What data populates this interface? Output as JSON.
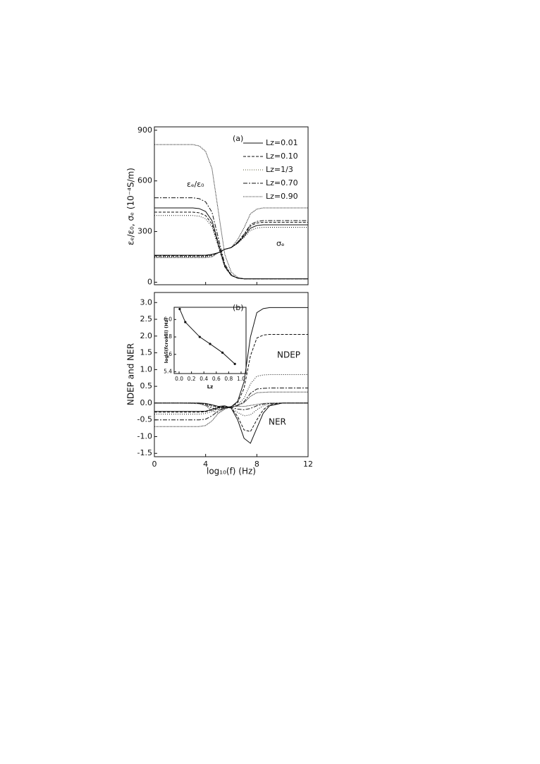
{
  "chart_data": [
    {
      "type": "line",
      "label": "(a)",
      "y_label": "εₑ/ε₀, σₑ (10⁻⁴S/m)",
      "annotations": [
        "εₑ/ε₀",
        "σₑ"
      ],
      "x": [
        0,
        1,
        2,
        3,
        3.5,
        4,
        4.5,
        5,
        5.5,
        6,
        6.5,
        7,
        7.5,
        8,
        8.5,
        9,
        10,
        11,
        12
      ],
      "xlim": [
        0,
        12
      ],
      "xticks": [
        0,
        4,
        8,
        12
      ],
      "ylim": [
        -15,
        920
      ],
      "yticks": [
        0,
        300,
        600,
        900
      ],
      "legend": "upper right",
      "series": [
        {
          "name": "Lz=0.01",
          "color": "#111111",
          "dash": "none",
          "values": [
            440,
            440,
            440,
            440,
            436,
            419,
            364,
            230,
            96,
            41,
            24,
            20,
            20,
            20,
            20,
            20,
            20,
            20,
            20
          ],
          "sigma_values": [
            160,
            160,
            160,
            160,
            160,
            160,
            165,
            175,
            195,
            205,
            232,
            272,
            320,
            336,
            340,
            340,
            340,
            340,
            340
          ]
        },
        {
          "name": "Lz=0.10",
          "color": "#111111",
          "dash": "4,2",
          "values": [
            415,
            415,
            415,
            415,
            411,
            395,
            344,
            218,
            91,
            40,
            24,
            20,
            20,
            20,
            20,
            20,
            20,
            20,
            20
          ],
          "sigma_values": [
            155,
            155,
            155,
            155,
            155,
            155,
            160,
            175,
            195,
            205,
            235,
            280,
            333,
            351,
            355,
            355,
            355,
            355,
            355
          ]
        },
        {
          "name": "Lz=1/3",
          "color": "#555533",
          "dash": "1,2",
          "values": [
            395,
            395,
            395,
            395,
            391,
            376,
            328,
            208,
            88,
            39,
            24,
            20,
            20,
            20,
            20,
            20,
            20,
            20,
            20
          ],
          "sigma_values": [
            150,
            150,
            150,
            150,
            150,
            150,
            155,
            175,
            195,
            205,
            229,
            265,
            307,
            321,
            325,
            325,
            325,
            325,
            325
          ]
        },
        {
          "name": "Lz=0.70",
          "color": "#111111",
          "dash": "6,2,2,2",
          "values": [
            500,
            500,
            500,
            500,
            495,
            476,
            414,
            260,
            106,
            44,
            25,
            20,
            20,
            20,
            20,
            20,
            20,
            20,
            20
          ],
          "sigma_values": [
            158,
            158,
            158,
            158,
            158,
            158,
            163,
            175,
            195,
            205,
            237,
            285,
            341,
            360,
            365,
            365,
            365,
            365,
            365
          ]
        },
        {
          "name": "Lz=0.90",
          "color": "#333333",
          "dash": "1,1",
          "values": [
            815,
            815,
            815,
            815,
            807,
            775,
            672,
            418,
            163,
            60,
            28,
            20,
            20,
            20,
            20,
            20,
            20,
            20,
            20
          ],
          "sigma_values": [
            145,
            145,
            145,
            145,
            145,
            145,
            150,
            175,
            195,
            205,
            252,
            322,
            405,
            433,
            440,
            440,
            440,
            440,
            440
          ]
        }
      ]
    },
    {
      "type": "line",
      "label": "(b)",
      "y_label": "NDEP and NER",
      "x_label": "log₁₀(f) (Hz)",
      "annotations": [
        "NDEP",
        "NER"
      ],
      "x": [
        0,
        1,
        2,
        3,
        3.5,
        4,
        4.5,
        5,
        5.5,
        6,
        6.5,
        7,
        7.5,
        8,
        8.5,
        9,
        10,
        11,
        12
      ],
      "xlim": [
        0,
        12
      ],
      "xticks": [
        0,
        4,
        8,
        12
      ],
      "ylim": [
        -1.6,
        3.3
      ],
      "yticks": [
        {
          "value": 3,
          "label": "3.0"
        },
        2.5,
        {
          "value": 2,
          "label": "2.0"
        },
        1.5,
        {
          "value": 1,
          "label": "1.0"
        },
        0.5,
        {
          "value": 0,
          "label": "0.0"
        },
        -0.5,
        {
          "value": -1,
          "label": "-1.0"
        },
        -1.5
      ],
      "series": [
        {
          "color": "#111111",
          "dash": "none",
          "values": [
            -0.25,
            -0.25,
            -0.25,
            -0.25,
            -0.25,
            -0.24,
            -0.19,
            -0.13,
            -0.12,
            -0.11,
            0.05,
            0.64,
            1.97,
            2.7,
            2.82,
            2.85,
            2.85,
            2.85,
            2.85
          ],
          "ner_values": [
            0,
            0,
            0,
            0,
            0,
            -0.01,
            -0.05,
            -0.1,
            -0.08,
            -0.15,
            -0.5,
            -1.05,
            -1.2,
            -0.75,
            -0.3,
            -0.08,
            0,
            0,
            0
          ]
        },
        {
          "color": "#111111",
          "dash": "4,2",
          "values": [
            -0.27,
            -0.27,
            -0.27,
            -0.27,
            -0.27,
            -0.26,
            -0.2,
            -0.14,
            -0.13,
            -0.11,
            0.01,
            0.44,
            1.41,
            1.94,
            2.03,
            2.05,
            2.05,
            2.05,
            2.05
          ],
          "ner_values": [
            0,
            0,
            0,
            0,
            0,
            -0.02,
            -0.07,
            -0.12,
            -0.1,
            -0.14,
            -0.4,
            -0.8,
            -0.85,
            -0.5,
            -0.2,
            -0.05,
            0,
            0,
            0
          ]
        },
        {
          "color": "#555533",
          "dash": "1,2",
          "values": [
            -0.33,
            -0.33,
            -0.33,
            -0.33,
            -0.33,
            -0.31,
            -0.25,
            -0.16,
            -0.13,
            -0.11,
            -0.05,
            0.14,
            0.57,
            0.8,
            0.84,
            0.85,
            0.85,
            0.85,
            0.85
          ],
          "ner_values": [
            0,
            0,
            0,
            0,
            -0.01,
            -0.03,
            -0.1,
            -0.15,
            -0.12,
            -0.15,
            -0.28,
            -0.38,
            -0.35,
            -0.2,
            -0.08,
            -0.02,
            0,
            0,
            0
          ]
        },
        {
          "color": "#111111",
          "dash": "6,2,2,2",
          "values": [
            -0.5,
            -0.5,
            -0.5,
            -0.5,
            -0.5,
            -0.48,
            -0.38,
            -0.23,
            -0.15,
            -0.12,
            -0.07,
            0.04,
            0.29,
            0.42,
            0.44,
            0.45,
            0.45,
            0.45,
            0.45
          ],
          "ner_values": [
            0,
            0,
            0,
            0,
            -0.01,
            -0.05,
            -0.15,
            -0.2,
            -0.15,
            -0.13,
            -0.18,
            -0.2,
            -0.16,
            -0.08,
            -0.03,
            -0.01,
            0,
            0,
            0
          ]
        },
        {
          "color": "#333333",
          "dash": "1,1",
          "values": [
            -0.7,
            -0.7,
            -0.7,
            -0.7,
            -0.7,
            -0.67,
            -0.53,
            -0.3,
            -0.17,
            -0.12,
            -0.08,
            0.01,
            0.2,
            0.31,
            0.32,
            0.33,
            0.33,
            0.33,
            0.33
          ],
          "ner_values": [
            0,
            0,
            0,
            -0.01,
            -0.02,
            -0.08,
            -0.22,
            -0.3,
            -0.18,
            -0.1,
            -0.1,
            -0.1,
            -0.07,
            -0.04,
            -0.01,
            0,
            0,
            0,
            0
          ]
        }
      ]
    },
    {
      "type": "inset",
      "x_label": "Lz",
      "y_label": "log₁₀(fcrossl) (Hz)",
      "x": [
        0.01,
        0.1,
        0.333,
        0.5,
        0.7,
        0.9
      ],
      "values": [
        6.12,
        5.97,
        5.8,
        5.72,
        5.62,
        5.49
      ],
      "xlim": [
        -0.08,
        1.08
      ],
      "xticks": [
        {
          "value": 0,
          "label": "0.0"
        },
        0.2,
        0.4,
        0.6,
        0.8,
        {
          "value": 1,
          "label": "1.0"
        }
      ],
      "ylim": [
        5.38,
        6.14
      ],
      "yticks": [
        5.4,
        5.6,
        5.8,
        {
          "value": 6,
          "label": "6.0"
        }
      ]
    }
  ]
}
